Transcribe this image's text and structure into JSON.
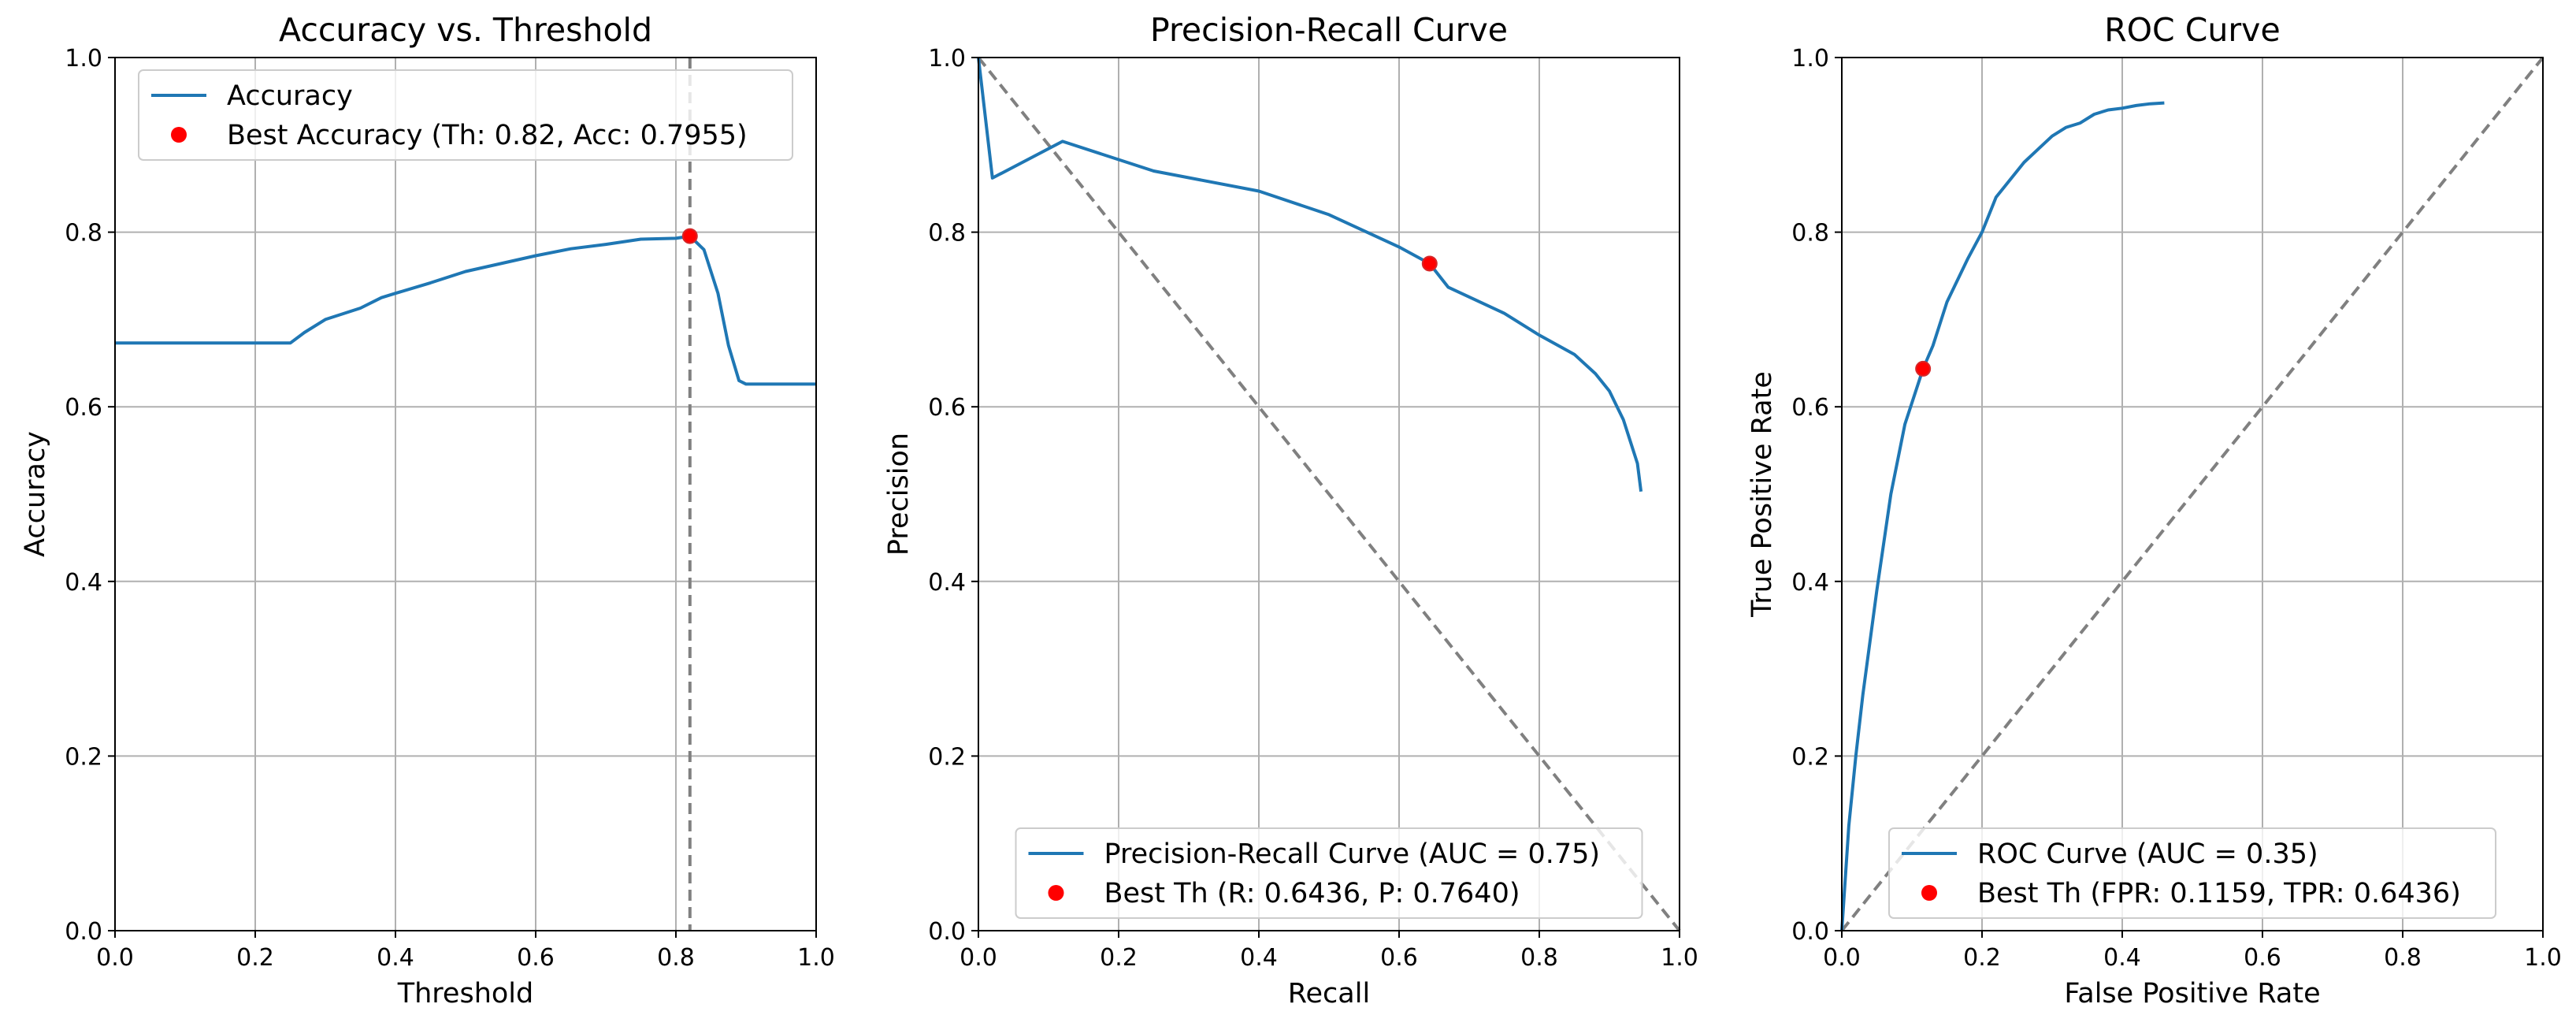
{
  "colors": {
    "series": "#1f77b4",
    "marker": "#ff0000",
    "marker_outline": "#d62728",
    "reference": "#808080",
    "grid": "#b0b0b0"
  },
  "chart_data": [
    {
      "type": "line",
      "title": "Accuracy vs. Threshold",
      "xlabel": "Threshold",
      "ylabel": "Accuracy",
      "xlim": [
        0,
        1
      ],
      "ylim": [
        0,
        1
      ],
      "xticks": [
        "0.0",
        "0.2",
        "0.4",
        "0.6",
        "0.8",
        "1.0"
      ],
      "yticks": [
        "0.0",
        "0.2",
        "0.4",
        "0.6",
        "0.8",
        "1.0"
      ],
      "grid": true,
      "legend_position": "upper-center",
      "series": [
        {
          "name": "Accuracy",
          "x": [
            0.0,
            0.1,
            0.2,
            0.25,
            0.27,
            0.3,
            0.35,
            0.38,
            0.4,
            0.45,
            0.5,
            0.55,
            0.6,
            0.65,
            0.7,
            0.75,
            0.8,
            0.82,
            0.84,
            0.86,
            0.875,
            0.89,
            0.9,
            0.95,
            1.0
          ],
          "y": [
            0.673,
            0.673,
            0.673,
            0.673,
            0.685,
            0.7,
            0.713,
            0.725,
            0.73,
            0.742,
            0.755,
            0.764,
            0.773,
            0.781,
            0.786,
            0.792,
            0.793,
            0.7955,
            0.78,
            0.73,
            0.67,
            0.63,
            0.626,
            0.626,
            0.626
          ]
        }
      ],
      "best_point": {
        "name": "Best Accuracy (Th: 0.82, Acc: 0.7955)",
        "x": 0.82,
        "y": 0.7955
      },
      "reference_line": {
        "type": "vertical",
        "x": 0.82
      }
    },
    {
      "type": "line",
      "title": "Precision-Recall Curve",
      "xlabel": "Recall",
      "ylabel": "Precision",
      "xlim": [
        0,
        1
      ],
      "ylim": [
        0,
        1
      ],
      "xticks": [
        "0.0",
        "0.2",
        "0.4",
        "0.6",
        "0.8",
        "1.0"
      ],
      "yticks": [
        "0.0",
        "0.2",
        "0.4",
        "0.6",
        "0.8",
        "1.0"
      ],
      "grid": true,
      "legend_position": "lower-center",
      "series": [
        {
          "name": "Precision-Recall Curve (AUC = 0.75)",
          "x": [
            0.0,
            0.02,
            0.12,
            0.25,
            0.4,
            0.5,
            0.6,
            0.6436,
            0.67,
            0.75,
            0.8,
            0.85,
            0.88,
            0.9,
            0.92,
            0.93,
            0.94,
            0.945
          ],
          "y": [
            1.0,
            0.862,
            0.904,
            0.87,
            0.847,
            0.82,
            0.783,
            0.764,
            0.737,
            0.707,
            0.682,
            0.66,
            0.638,
            0.618,
            0.585,
            0.56,
            0.535,
            0.503
          ]
        }
      ],
      "best_point": {
        "name": "Best Th (R: 0.6436, P: 0.7640)",
        "x": 0.6436,
        "y": 0.764
      },
      "reference_line": {
        "type": "diagonal",
        "from": [
          0,
          1
        ],
        "to": [
          1,
          0
        ]
      }
    },
    {
      "type": "line",
      "title": "ROC Curve",
      "xlabel": "False Positive Rate",
      "ylabel": "True Positive Rate",
      "xlim": [
        0,
        1
      ],
      "ylim": [
        0,
        1
      ],
      "xticks": [
        "0.0",
        "0.2",
        "0.4",
        "0.6",
        "0.8",
        "1.0"
      ],
      "yticks": [
        "0.0",
        "0.2",
        "0.4",
        "0.6",
        "0.8",
        "1.0"
      ],
      "grid": true,
      "legend_position": "lower-center",
      "series": [
        {
          "name": "ROC Curve (AUC = 0.35)",
          "x": [
            0.0,
            0.01,
            0.02,
            0.03,
            0.05,
            0.07,
            0.09,
            0.1159,
            0.13,
            0.15,
            0.18,
            0.2,
            0.22,
            0.24,
            0.26,
            0.28,
            0.3,
            0.32,
            0.34,
            0.36,
            0.38,
            0.4,
            0.42,
            0.44,
            0.46
          ],
          "y": [
            0.0,
            0.12,
            0.2,
            0.27,
            0.39,
            0.5,
            0.58,
            0.6436,
            0.67,
            0.72,
            0.77,
            0.8,
            0.84,
            0.86,
            0.88,
            0.895,
            0.91,
            0.92,
            0.925,
            0.935,
            0.94,
            0.942,
            0.945,
            0.947,
            0.948
          ]
        }
      ],
      "best_point": {
        "name": "Best Th (FPR: 0.1159, TPR: 0.6436)",
        "x": 0.1159,
        "y": 0.6436
      },
      "reference_line": {
        "type": "diagonal",
        "from": [
          0,
          0
        ],
        "to": [
          1,
          1
        ]
      }
    }
  ]
}
